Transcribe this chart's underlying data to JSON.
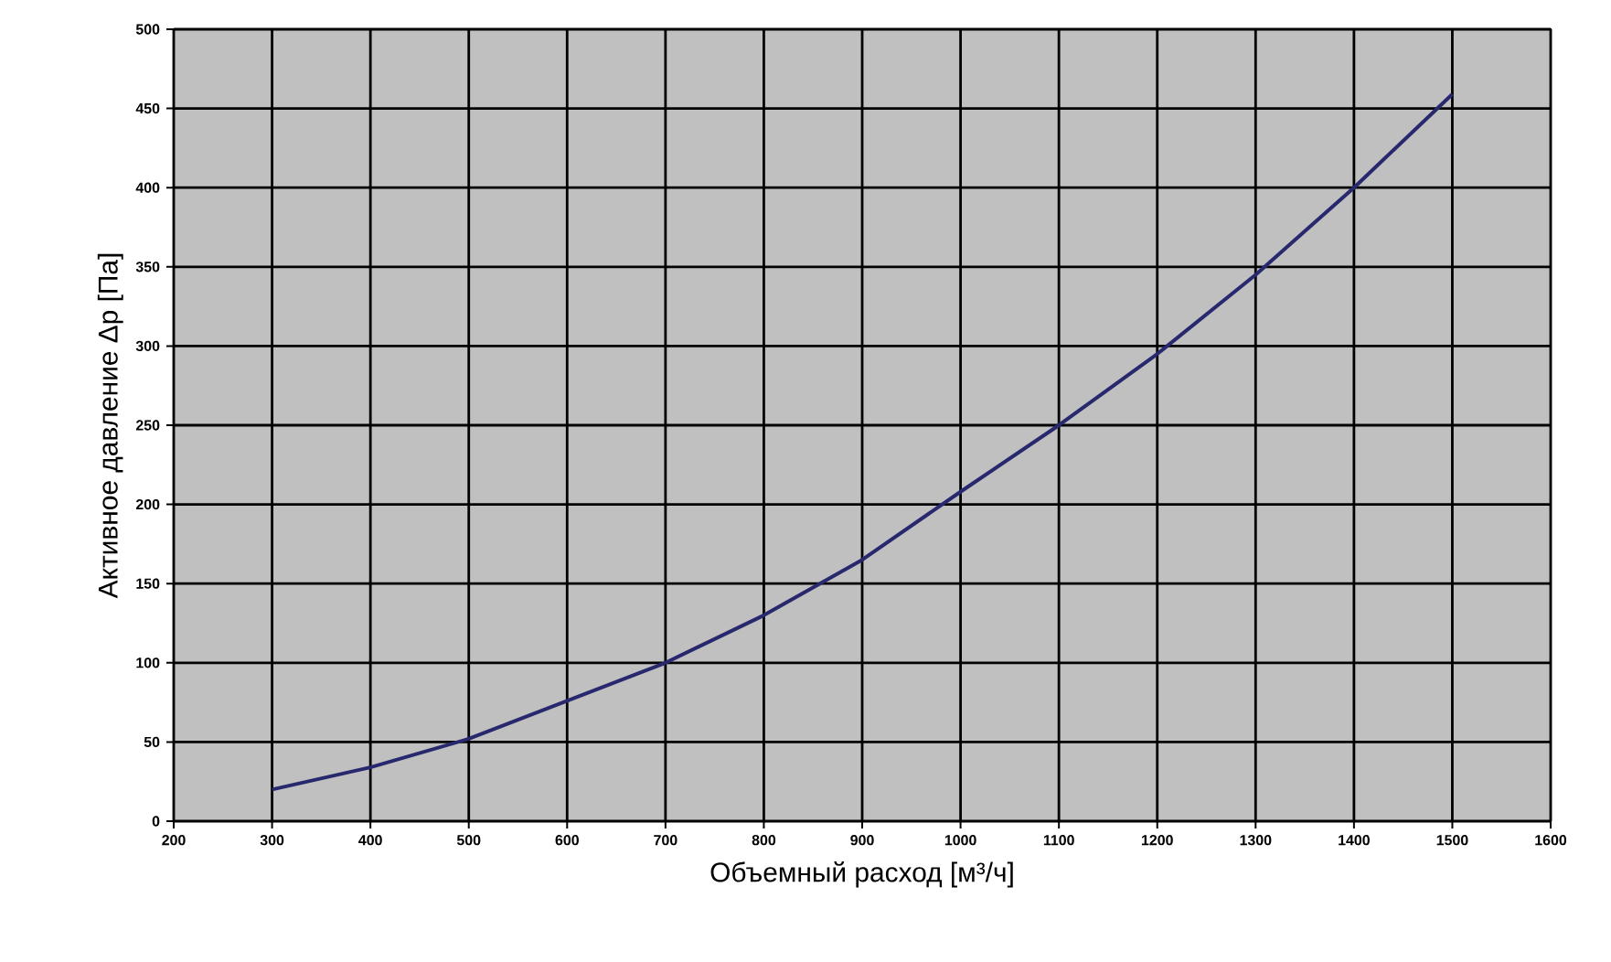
{
  "chart_data": {
    "type": "line",
    "xlabel": "Объемный расход [м³/ч]",
    "ylabel": "Активное давление Δp [Па]",
    "x": [
      300,
      400,
      500,
      600,
      700,
      800,
      900,
      1000,
      1100,
      1200,
      1300,
      1400,
      1500
    ],
    "series": [
      {
        "color": "#28286e",
        "values": [
          20,
          34,
          52,
          76,
          100,
          130,
          165,
          208,
          250,
          295,
          345,
          400,
          459
        ]
      }
    ],
    "xlim": [
      200,
      1600
    ],
    "xticks": [
      200,
      300,
      400,
      500,
      600,
      700,
      800,
      900,
      1000,
      1100,
      1200,
      1300,
      1400,
      1500,
      1600
    ],
    "ylim": [
      0,
      500
    ],
    "yticks": [
      0,
      50,
      100,
      150,
      200,
      250,
      300,
      350,
      400,
      450,
      500
    ],
    "grid": true,
    "marker": "none",
    "line_style": "solid"
  }
}
